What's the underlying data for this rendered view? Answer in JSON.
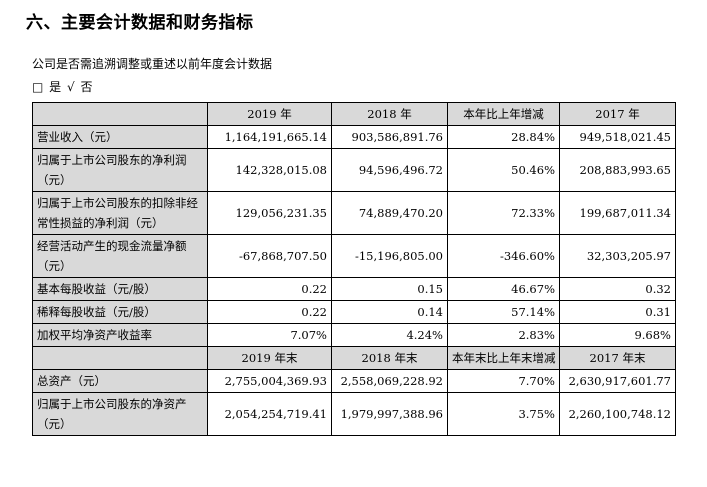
{
  "section_title": "六、主要会计数据和财务指标",
  "question": "公司是否需追溯调整或重述以前年度会计数据",
  "answer": {
    "box": "□",
    "yes": "是",
    "check": "√",
    "no": "否"
  },
  "header1": [
    "",
    "2019 年",
    "2018 年",
    "本年比上年增减",
    "2017 年"
  ],
  "rows1": [
    {
      "label": "营业收入（元）",
      "v": [
        "1,164,191,665.14",
        "903,586,891.76",
        "28.84%",
        "949,518,021.45"
      ]
    },
    {
      "label": "归属于上市公司股东的净利润（元）",
      "v": [
        "142,328,015.08",
        "94,596,496.72",
        "50.46%",
        "208,883,993.65"
      ]
    },
    {
      "label": "归属于上市公司股东的扣除非经常性损益的净利润（元）",
      "v": [
        "129,056,231.35",
        "74,889,470.20",
        "72.33%",
        "199,687,011.34"
      ]
    },
    {
      "label": "经营活动产生的现金流量净额（元）",
      "v": [
        "-67,868,707.50",
        "-15,196,805.00",
        "-346.60%",
        "32,303,205.97"
      ]
    },
    {
      "label": "基本每股收益（元/股）",
      "v": [
        "0.22",
        "0.15",
        "46.67%",
        "0.32"
      ]
    },
    {
      "label": "稀释每股收益（元/股）",
      "v": [
        "0.22",
        "0.14",
        "57.14%",
        "0.31"
      ]
    },
    {
      "label": "加权平均净资产收益率",
      "v": [
        "7.07%",
        "4.24%",
        "2.83%",
        "9.68%"
      ]
    }
  ],
  "header2": [
    "",
    "2019 年末",
    "2018 年末",
    "本年末比上年末增减",
    "2017 年末"
  ],
  "rows2": [
    {
      "label": "总资产（元）",
      "v": [
        "2,755,004,369.93",
        "2,558,069,228.92",
        "7.70%",
        "2,630,917,601.77"
      ]
    },
    {
      "label": "归属于上市公司股东的净资产（元）",
      "v": [
        "2,054,254,719.41",
        "1,979,997,388.96",
        "3.75%",
        "2,260,100,748.12"
      ]
    }
  ]
}
